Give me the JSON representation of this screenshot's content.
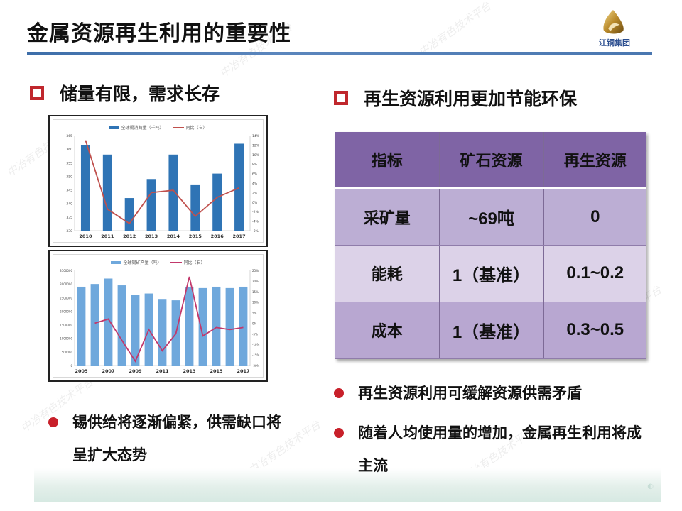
{
  "slide": {
    "title": "金属资源再生利用的重要性",
    "logo": {
      "icon": "jiangxi-copper-logo-icon",
      "text": "江铜集团"
    },
    "watermark_text": "中冶有色技术平台",
    "colors": {
      "title_rule": "#4a77b0",
      "bullet_red": "#c8202a",
      "section_square": "#c0272d",
      "table_header": "#7f64a5",
      "table_row_dark": "#bcaed4",
      "table_row_light": "#dcd2e8",
      "bar_dark_blue": "#2f74b5",
      "bar_light_blue": "#6fa8dc",
      "line_red": "#c0504d",
      "line_magenta": "#c2386b"
    }
  },
  "left_section": {
    "heading": "储量有限，需求长存",
    "bullets": [
      "锡供给将逐渐偏紧，供需缺口将呈扩大态势"
    ]
  },
  "right_section": {
    "heading": "再生资源利用更加节能环保",
    "table": {
      "headers": [
        "指标",
        "矿石资源",
        "再生资源"
      ],
      "rows": [
        [
          "采矿量",
          "~69吨",
          "0"
        ],
        [
          "能耗",
          "1（基准）",
          "0.1~0.2"
        ],
        [
          "成本",
          "1（基准）",
          "0.3~0.5"
        ]
      ]
    },
    "bullets": [
      "再生资源利用可缓解资源供需矛盾",
      "随着人均使用量的增加，金属再生利用将成主流"
    ]
  },
  "chart_data": [
    {
      "type": "bar",
      "title": "",
      "legend": [
        "全球锡消费量（千吨）",
        "同比（右）"
      ],
      "categories": [
        "2010",
        "2011",
        "2012",
        "2013",
        "2014",
        "2015",
        "2016",
        "2017"
      ],
      "series": [
        {
          "name": "全球锡消费量（千吨）",
          "type": "bar",
          "axis": "left",
          "values": [
            361.5,
            358,
            342,
            349,
            358,
            347,
            351,
            362
          ]
        },
        {
          "name": "同比（右）",
          "type": "line",
          "axis": "right",
          "values": [
            13,
            -1.5,
            -4.5,
            2,
            2.5,
            -3,
            1,
            3
          ]
        }
      ],
      "yleft_ticks": [
        "330",
        "335",
        "340",
        "345",
        "350",
        "355",
        "360",
        "365"
      ],
      "yright_ticks": [
        "-6%",
        "-4%",
        "-2%",
        "0%",
        "2%",
        "4%",
        "6%",
        "8%",
        "10%",
        "12%",
        "14%"
      ],
      "ylim_left": [
        330,
        365
      ],
      "ylim_right": [
        -6,
        14
      ],
      "grid": false,
      "legend_position": "top"
    },
    {
      "type": "bar",
      "title": "",
      "legend": [
        "全球锡矿产量（吨）",
        "同比（右）"
      ],
      "categories": [
        "2005",
        "2006",
        "2007",
        "2008",
        "2009",
        "2010",
        "2011",
        "2012",
        "2013",
        "2014",
        "2015",
        "2016",
        "2017"
      ],
      "x_tick_labels": [
        "2005",
        "2007",
        "2009",
        "2011",
        "2013",
        "2015",
        "2017"
      ],
      "series": [
        {
          "name": "全球锡矿产量（吨）",
          "type": "bar",
          "axis": "left",
          "values": [
            2900000,
            3000000,
            3200000,
            2950000,
            2600000,
            2650000,
            2450000,
            2400000,
            2900000,
            2850000,
            2900000,
            2850000,
            2900000
          ]
        },
        {
          "name": "同比（右）",
          "type": "line",
          "axis": "right",
          "values": [
            null,
            0,
            2,
            -8,
            -18,
            -3,
            -13,
            -5,
            22,
            -6,
            -2,
            -3,
            -2
          ]
        }
      ],
      "yleft_ticks": [
        "0",
        "500000",
        "1000000",
        "1500000",
        "2000000",
        "2500000",
        "3000000",
        "3500000"
      ],
      "yright_ticks": [
        "-20%",
        "-15%",
        "-10%",
        "-5%",
        "0%",
        "5%",
        "10%",
        "15%",
        "20%",
        "25%"
      ],
      "ylim_left": [
        0,
        3500000
      ],
      "ylim_right": [
        -20,
        25
      ],
      "grid": false,
      "legend_position": "top"
    }
  ]
}
